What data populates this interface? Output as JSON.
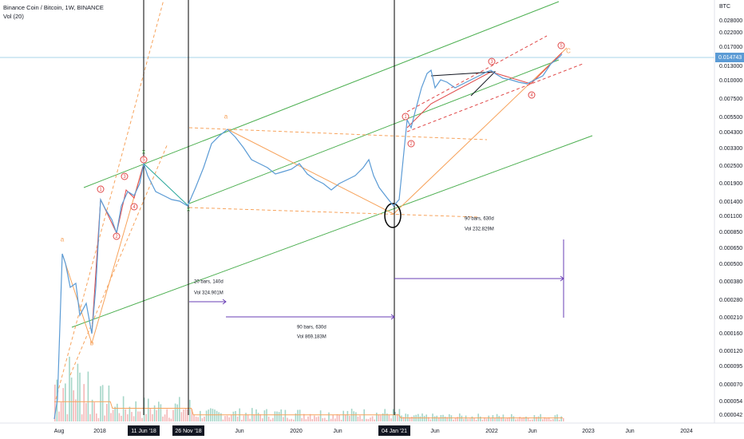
{
  "header": {
    "title": "Binance Coin / Bitcoin, 1W, BINANCE",
    "indicator": "Vol (20)"
  },
  "price_axis": {
    "unit": "BTC",
    "labels": [
      "0.028000",
      "0.022000",
      "0.017000",
      "0.013000",
      "0.010000",
      "0.007500",
      "0.005500",
      "0.004300",
      "0.003300",
      "0.002500",
      "0.001900",
      "0.001400",
      "0.001100",
      "0.000850",
      "0.000650",
      "0.000500",
      "0.000380",
      "0.000280",
      "0.000210",
      "0.000160",
      "0.000120",
      "0.000095",
      "0.000070",
      "0.000054",
      "0.000042"
    ],
    "current_price": "0.014743"
  },
  "time_axis": {
    "labels": [
      "Aug",
      "2018",
      "11 Jun '18",
      "26 Nov '18",
      "Jun",
      "2020",
      "Jun",
      "04 Jan '21",
      "Jun",
      "2022",
      "Jun",
      "2023",
      "Jun",
      "2024"
    ]
  },
  "measurements": [
    {
      "bars": "20 bars, 140d",
      "volume": "Vol 324.901M"
    },
    {
      "bars": "90 bars, 630d",
      "volume": "Vol 869.183M"
    },
    {
      "bars": "90 bars, 630d",
      "volume": "Vol 232.829M"
    }
  ],
  "wave_labels": [
    "a",
    "b",
    "1",
    "2",
    "3",
    "4",
    "5",
    "x",
    "x",
    "a",
    "1",
    "2",
    "3",
    "4",
    "5",
    "C"
  ]
}
